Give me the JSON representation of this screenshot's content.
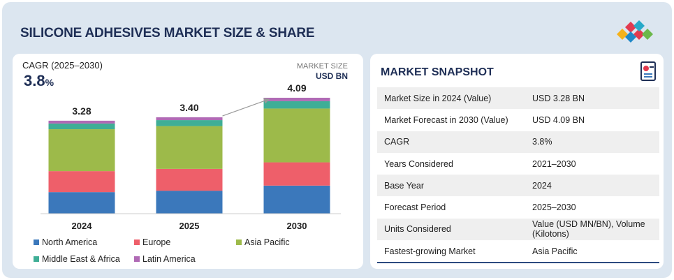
{
  "header": {
    "title": "SILICONE ADHESIVES MARKET SIZE & SHARE"
  },
  "chart_data": {
    "type": "stacked_bar",
    "cagr_label": "CAGR (2025–2030)",
    "cagr_value": "3.8",
    "cagr_unit": "%",
    "unit_label": "MARKET SIZE",
    "unit": "USD BN",
    "categories": [
      "2024",
      "2025",
      "2030"
    ],
    "series": [
      {
        "name": "North America",
        "color": "#3b78bb",
        "values": [
          0.76,
          0.81,
          0.99
        ]
      },
      {
        "name": "Europe",
        "color": "#ee5f6a",
        "values": [
          0.74,
          0.77,
          0.82
        ]
      },
      {
        "name": "Asia Pacific",
        "color": "#9dba4a",
        "values": [
          1.48,
          1.51,
          1.9
        ]
      },
      {
        "name": "Middle East & Africa",
        "color": "#3fae96",
        "values": [
          0.2,
          0.21,
          0.26
        ]
      },
      {
        "name": "Latin America",
        "color": "#b06ab5",
        "values": [
          0.1,
          0.1,
          0.12
        ]
      }
    ],
    "totals": [
      3.28,
      3.4,
      4.09
    ],
    "total_labels": [
      "3.28",
      "3.40",
      "4.09"
    ]
  },
  "snapshot": {
    "title": "MARKET SNAPSHOT",
    "rows": [
      [
        "Market Size in 2024 (Value)",
        "USD 3.28 BN"
      ],
      [
        "Market Forecast in 2030 (Value)",
        "USD 4.09 BN"
      ],
      [
        "CAGR",
        "3.8%"
      ],
      [
        "Years Considered",
        "2021–2030"
      ],
      [
        "Base Year",
        "2024"
      ],
      [
        "Forecast Period",
        "2025–2030"
      ],
      [
        "Units Considered",
        "Value (USD MN/BN), Volume (Kilotons)"
      ],
      [
        "Fastest-growing Market",
        "Asia Pacific"
      ]
    ]
  }
}
